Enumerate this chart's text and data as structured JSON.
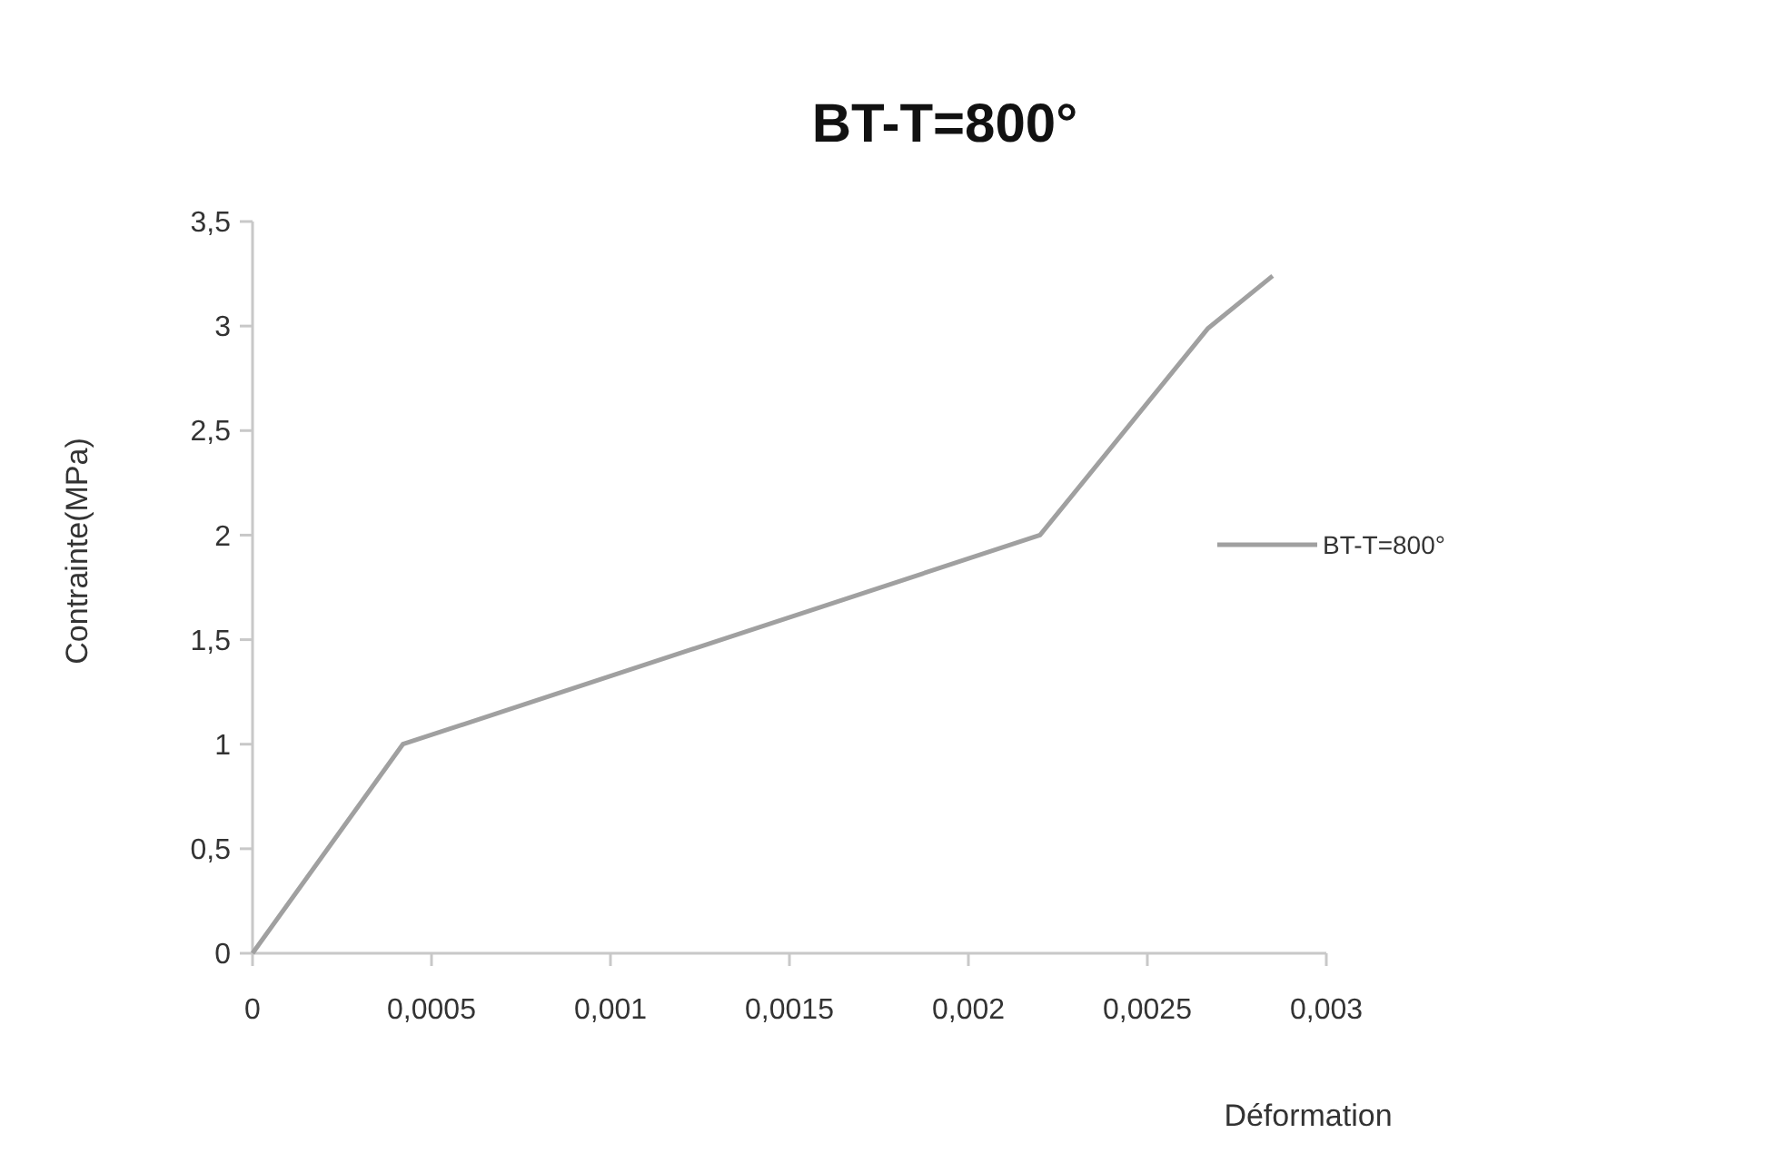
{
  "chart_data": {
    "type": "line",
    "title": "BT-T=800°",
    "xlabel": "Déformation",
    "ylabel": "Contrainte(MPa)",
    "x": [
      0,
      0.00042,
      0.0022,
      0.00267,
      0.00285
    ],
    "series": [
      {
        "name": "BT-T=800°",
        "color": "#a0a0a0",
        "values": [
          0,
          1,
          2,
          2.99,
          3.24
        ]
      }
    ],
    "xlim": [
      0,
      0.003
    ],
    "xticks": [
      0,
      {
        "value": 0.0005,
        "label": "0,0005"
      },
      {
        "value": 0.001,
        "label": "0,001"
      },
      {
        "value": 0.0015,
        "label": "0,0015"
      },
      {
        "value": 0.002,
        "label": "0,002"
      },
      {
        "value": 0.0025,
        "label": "0,0025"
      },
      {
        "value": 0.003,
        "label": "0,003"
      }
    ],
    "ylim": [
      0,
      3.5
    ],
    "yticks": [
      0,
      {
        "value": 0.5,
        "label": "0,5"
      },
      1,
      {
        "value": 1.5,
        "label": "1,5"
      },
      2,
      {
        "value": 2.5,
        "label": "2,5"
      },
      3,
      {
        "value": 3.5,
        "label": "3,5"
      }
    ],
    "grid": false,
    "legend": "right",
    "marker": "none",
    "line_style": "solid"
  }
}
